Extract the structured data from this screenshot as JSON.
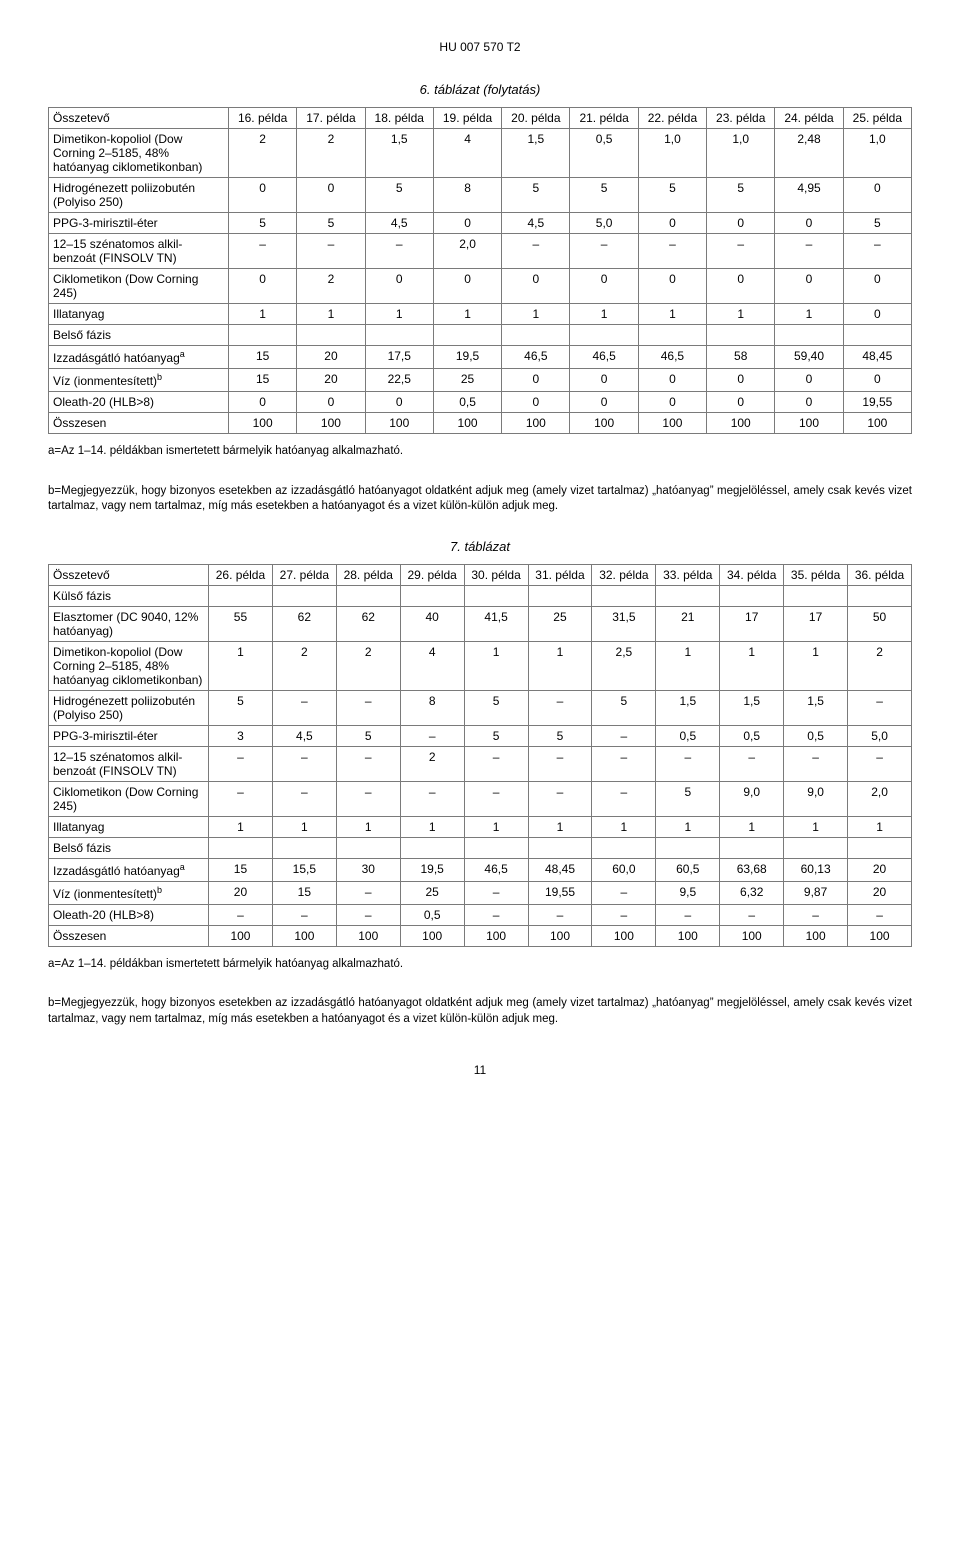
{
  "doc_header": "HU 007 570 T2",
  "page_number": "11",
  "table6": {
    "caption": "6. táblázat (folytatás)",
    "corner": "Összetevő",
    "columns": [
      "16. példa",
      "17. példa",
      "18. példa",
      "19. példa",
      "20. példa",
      "21. példa",
      "22. példa",
      "23. példa",
      "24. példa",
      "25. példa"
    ],
    "rows": [
      {
        "label": "Dimetikon-kopoliol (Dow Corning 2–5185, 48% hatóanyag ciklometikonban)",
        "cells": [
          "2",
          "2",
          "1,5",
          "4",
          "1,5",
          "0,5",
          "1,0",
          "1,0",
          "2,48",
          "1,0"
        ]
      },
      {
        "label": "Hidrogénezett poliizobutén (Polyiso 250)",
        "cells": [
          "0",
          "0",
          "5",
          "8",
          "5",
          "5",
          "5",
          "5",
          "4,95",
          "0"
        ]
      },
      {
        "label": "PPG-3-mirisztil-éter",
        "cells": [
          "5",
          "5",
          "4,5",
          "0",
          "4,5",
          "5,0",
          "0",
          "0",
          "0",
          "5"
        ]
      },
      {
        "label": "12–15 szénatomos alkil-benzoát (FINSOLV TN)",
        "cells": [
          "–",
          "–",
          "–",
          "2,0",
          "–",
          "–",
          "–",
          "–",
          "–",
          "–"
        ]
      },
      {
        "label": "Ciklometikon (Dow Corning 245)",
        "cells": [
          "0",
          "2",
          "0",
          "0",
          "0",
          "0",
          "0",
          "0",
          "0",
          "0"
        ]
      },
      {
        "label": "Illatanyag",
        "cells": [
          "1",
          "1",
          "1",
          "1",
          "1",
          "1",
          "1",
          "1",
          "1",
          "0"
        ]
      },
      {
        "label": "Belső fázis",
        "cells": [
          "",
          "",
          "",
          "",
          "",
          "",
          "",
          "",
          "",
          ""
        ],
        "section": true
      },
      {
        "label": "Izzadásgátló hatóanyag",
        "sup": "a",
        "cells": [
          "15",
          "20",
          "17,5",
          "19,5",
          "46,5",
          "46,5",
          "46,5",
          "58",
          "59,40",
          "48,45"
        ]
      },
      {
        "label": "Víz (ionmentesített)",
        "sup": "b",
        "cells": [
          "15",
          "20",
          "22,5",
          "25",
          "0",
          "0",
          "0",
          "0",
          "0",
          "0"
        ]
      },
      {
        "label": "Oleath-20 (HLB>8)",
        "cells": [
          "0",
          "0",
          "0",
          "0,5",
          "0",
          "0",
          "0",
          "0",
          "0",
          "19,55"
        ]
      },
      {
        "label": "Összesen",
        "cells": [
          "100",
          "100",
          "100",
          "100",
          "100",
          "100",
          "100",
          "100",
          "100",
          "100"
        ]
      }
    ]
  },
  "table7": {
    "caption": "7. táblázat",
    "corner": "Összetevő",
    "columns": [
      "26. példa",
      "27. példa",
      "28. példa",
      "29. példa",
      "30. példa",
      "31. példa",
      "32. példa",
      "33. példa",
      "34. példa",
      "35. példa",
      "36. példa"
    ],
    "rows": [
      {
        "label": "Külső fázis",
        "cells": [
          "",
          "",
          "",
          "",
          "",
          "",
          "",
          "",
          "",
          "",
          ""
        ],
        "section": true
      },
      {
        "label": "Elasztomer (DC 9040, 12% hatóanyag)",
        "cells": [
          "55",
          "62",
          "62",
          "40",
          "41,5",
          "25",
          "31,5",
          "21",
          "17",
          "17",
          "50"
        ]
      },
      {
        "label": "Dimetikon-kopoliol (Dow Corning 2–5185, 48% hatóanyag ciklometikonban)",
        "cells": [
          "1",
          "2",
          "2",
          "4",
          "1",
          "1",
          "2,5",
          "1",
          "1",
          "1",
          "2"
        ]
      },
      {
        "label": "Hidrogénezett poliizobutén (Polyiso 250)",
        "cells": [
          "5",
          "–",
          "–",
          "8",
          "5",
          "–",
          "5",
          "1,5",
          "1,5",
          "1,5",
          "–"
        ]
      },
      {
        "label": "PPG-3-mirisztil-éter",
        "cells": [
          "3",
          "4,5",
          "5",
          "–",
          "5",
          "5",
          "–",
          "0,5",
          "0,5",
          "0,5",
          "5,0"
        ]
      },
      {
        "label": "12–15 szénatomos alkil-benzoát (FINSOLV TN)",
        "cells": [
          "–",
          "–",
          "–",
          "2",
          "–",
          "–",
          "–",
          "–",
          "–",
          "–",
          "–"
        ]
      },
      {
        "label": "Ciklometikon (Dow Corning 245)",
        "cells": [
          "–",
          "–",
          "–",
          "–",
          "–",
          "–",
          "–",
          "5",
          "9,0",
          "9,0",
          "2,0"
        ]
      },
      {
        "label": "Illatanyag",
        "cells": [
          "1",
          "1",
          "1",
          "1",
          "1",
          "1",
          "1",
          "1",
          "1",
          "1",
          "1"
        ]
      },
      {
        "label": "Belső fázis",
        "cells": [
          "",
          "",
          "",
          "",
          "",
          "",
          "",
          "",
          "",
          "",
          ""
        ],
        "section": true
      },
      {
        "label": "Izzadásgátló hatóanyag",
        "sup": "a",
        "cells": [
          "15",
          "15,5",
          "30",
          "19,5",
          "46,5",
          "48,45",
          "60,0",
          "60,5",
          "63,68",
          "60,13",
          "20"
        ]
      },
      {
        "label": "Víz (ionmentesített)",
        "sup": "b",
        "cells": [
          "20",
          "15",
          "–",
          "25",
          "–",
          "19,55",
          "–",
          "9,5",
          "6,32",
          "9,87",
          "20"
        ]
      },
      {
        "label": "Oleath-20 (HLB>8)",
        "cells": [
          "–",
          "–",
          "–",
          "0,5",
          "–",
          "–",
          "–",
          "–",
          "–",
          "–",
          "–"
        ]
      },
      {
        "label": "Összesen",
        "cells": [
          "100",
          "100",
          "100",
          "100",
          "100",
          "100",
          "100",
          "100",
          "100",
          "100",
          "100"
        ]
      }
    ]
  },
  "footnote_a": "a=Az 1–14. példákban ismertetett bármelyik hatóanyag alkalmazható.",
  "footnote_b": "b=Megjegyezzük, hogy bizonyos esetekben az izzadásgátló hatóanyagot oldatként adjuk meg (amely vizet tartalmaz) „hatóanyag” megjelöléssel, amely csak kevés vizet tartalmaz, vagy nem tartalmaz, míg más esetekben a hatóanyagot és a vizet külön-külön adjuk meg."
}
